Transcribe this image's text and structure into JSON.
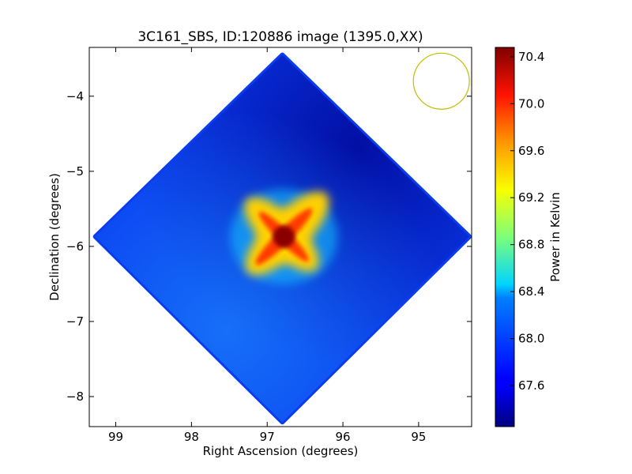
{
  "chart_data": {
    "type": "heatmap",
    "title": "3C161_SBS, ID:120886 image (1395.0,XX)",
    "xlabel": "Right Ascension (degrees)",
    "ylabel": "Declination (degrees)",
    "xlim": [
      99.35,
      94.3
    ],
    "ylim": [
      -8.4,
      -3.35
    ],
    "x_ticks": [
      99,
      98,
      97,
      96,
      95
    ],
    "x_tick_labels": [
      "99",
      "98",
      "97",
      "96",
      "95"
    ],
    "y_ticks": [
      -4,
      -5,
      -6,
      -7,
      -8
    ],
    "y_tick_labels": [
      "−4",
      "−5",
      "−6",
      "−7",
      "−8"
    ],
    "colorbar": {
      "label": "Power in Kelvin",
      "min": 67.25,
      "max": 70.48,
      "ticks": [
        70.4,
        70.0,
        69.6,
        69.2,
        68.8,
        68.4,
        68.0,
        67.6
      ],
      "tick_labels": [
        "70.4",
        "70.0",
        "69.6",
        "69.2",
        "68.8",
        "68.4",
        "68.0",
        "67.6"
      ],
      "colormap": "jet"
    },
    "field": {
      "shape": "diamond",
      "center": [
        96.8,
        -5.87
      ],
      "corners": [
        [
          96.8,
          -3.45
        ],
        [
          99.27,
          -5.87
        ],
        [
          96.8,
          -8.34
        ],
        [
          94.33,
          -5.87
        ]
      ],
      "background_value": 67.85,
      "peak": {
        "x": 96.78,
        "y": -5.87,
        "value": 70.4
      }
    },
    "beam_marker": {
      "shape": "circle",
      "center": [
        94.7,
        -3.8
      ],
      "radius_deg": 0.37,
      "color": "#bfbf00"
    },
    "grid": false,
    "legend": "none"
  }
}
